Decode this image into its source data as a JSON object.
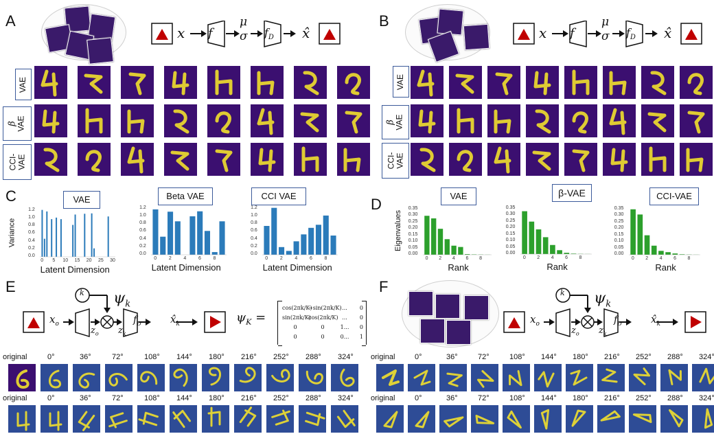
{
  "panels": {
    "A": "A",
    "B": "B",
    "C": "C",
    "D": "D",
    "E": "E",
    "F": "F"
  },
  "pipeline": {
    "x": "x",
    "f": "f",
    "mu": "μ",
    "sigma": "σ",
    "fD": "f",
    "fD_sub": "D",
    "xhat": "x̂",
    "xo": "x",
    "xo_sub": "o",
    "zo": "z",
    "zo_sub": "o",
    "zk": "z",
    "zk_sub": "k",
    "k": "k",
    "psi": "ψ",
    "psi_sub": "k",
    "xkhat": "x̂",
    "xkhat_sub": "k",
    "psiK": "ψ",
    "psiK_sub": "K",
    "eq": "="
  },
  "matrix": {
    "r1": [
      "cos(2πk/K)",
      "−sin(2πk/K)",
      "...",
      "0"
    ],
    "r2": [
      "sin(2πk/K)",
      "cos(2πk/K)",
      "...",
      "0"
    ],
    "r3": [
      "0",
      "0",
      "1...",
      "0"
    ],
    "r4": [
      "0",
      "0",
      "0...",
      "1"
    ]
  },
  "rowlabels": {
    "vae": "VAE",
    "beta_sym": "β",
    "beta_vae": "VAE",
    "cci": "CCI-",
    "cci_vae": "VAE"
  },
  "chartsC": [
    {
      "title": "VAE",
      "ylabel": "Variance",
      "xlabel": "Latent Dimension",
      "color": "#2b7bba",
      "type": "bar",
      "ticks_y": [
        "0.0",
        "0.2",
        "0.4",
        "0.6",
        "0.8",
        "1.0",
        "1.2"
      ],
      "ticks_x": [
        "0",
        "5",
        "10",
        "15",
        "20",
        "25",
        "30"
      ],
      "ylim": [
        0,
        1.25
      ],
      "xlim": [
        -1,
        31
      ],
      "x": [
        0,
        1,
        2,
        4,
        6,
        8,
        13,
        14,
        18,
        21,
        22,
        28
      ],
      "values": [
        1.22,
        0.47,
        1.18,
        0.98,
        1.02,
        0.98,
        0.83,
        1.1,
        1.12,
        1.13,
        0.22,
        1.05
      ]
    },
    {
      "title": "Beta VAE",
      "ylabel": "",
      "xlabel": "Latent Dimension",
      "color": "#2b7bba",
      "type": "bar",
      "ticks_y": [
        "0.0",
        "0.2",
        "0.4",
        "0.6",
        "0.8",
        "1.0",
        "1.2"
      ],
      "ticks_x": [
        "0",
        "2",
        "4",
        "6",
        "8"
      ],
      "ylim": [
        0,
        1.25
      ],
      "xlim": [
        -0.6,
        9.6
      ],
      "x": [
        0,
        1,
        2,
        3,
        5,
        6,
        7,
        8,
        9
      ],
      "values": [
        1.18,
        0.47,
        1.12,
        0.87,
        1.0,
        1.13,
        0.62,
        0.07,
        0.87
      ]
    },
    {
      "title": "CCI VAE",
      "ylabel": "",
      "xlabel": "Latent Dimension",
      "color": "#2b7bba",
      "type": "bar",
      "ticks_y": [
        "0.0",
        "0.2",
        "0.4",
        "0.6",
        "0.8",
        "1.0",
        "1.2"
      ],
      "ticks_x": [
        "0",
        "2",
        "4",
        "6",
        "8"
      ],
      "ylim": [
        0,
        1.25
      ],
      "xlim": [
        -0.6,
        9.6
      ],
      "x": [
        0,
        1,
        2,
        3,
        4,
        5,
        6,
        7,
        8,
        9
      ],
      "values": [
        0.75,
        1.22,
        0.2,
        0.1,
        0.35,
        0.53,
        0.7,
        0.78,
        1.02,
        0.5
      ]
    }
  ],
  "chartsD": [
    {
      "title": "VAE",
      "ylabel": "Eigenvalues",
      "xlabel": "Rank",
      "color": "#2ca02c",
      "type": "bar",
      "ticks_y": [
        "0.00",
        "0.05",
        "0.10",
        "0.15",
        "0.20",
        "0.25",
        "0.30",
        "0.35"
      ],
      "ticks_x": [
        "0",
        "2",
        "4",
        "6",
        "8"
      ],
      "ylim": [
        0,
        0.37
      ],
      "xlim": [
        -0.6,
        9.6
      ],
      "x": [
        0,
        1,
        2,
        3,
        4,
        5,
        6,
        7,
        8,
        9
      ],
      "values": [
        0.3,
        0.28,
        0.2,
        0.12,
        0.07,
        0.06,
        0.005,
        0.003,
        0.002,
        0.001
      ]
    },
    {
      "title": "β-VAE",
      "ylabel": "",
      "xlabel": "Rank",
      "color": "#2ca02c",
      "type": "bar",
      "ticks_y": [
        "0.00",
        "0.05",
        "0.10",
        "0.15",
        "0.20",
        "0.25",
        "0.30",
        "0.35"
      ],
      "ticks_x": [
        "0",
        "2",
        "4",
        "6",
        "8"
      ],
      "ylim": [
        0,
        0.37
      ],
      "xlim": [
        -0.6,
        9.6
      ],
      "x": [
        0,
        1,
        2,
        3,
        4,
        5,
        6,
        7,
        8,
        9
      ],
      "values": [
        0.33,
        0.25,
        0.19,
        0.13,
        0.07,
        0.03,
        0.01,
        0.004,
        0.002,
        0.001
      ]
    },
    {
      "title": "CCI-VAE",
      "ylabel": "",
      "xlabel": "Rank",
      "color": "#2ca02c",
      "type": "bar",
      "ticks_y": [
        "0.00",
        "0.05",
        "0.10",
        "0.15",
        "0.20",
        "0.25",
        "0.30",
        "0.35"
      ],
      "ticks_x": [
        "0",
        "2",
        "4",
        "6",
        "8"
      ],
      "ylim": [
        0,
        0.37
      ],
      "xlim": [
        -0.6,
        9.6
      ],
      "x": [
        0,
        1,
        2,
        3,
        4,
        5,
        6,
        7,
        8,
        9
      ],
      "values": [
        0.35,
        0.31,
        0.15,
        0.07,
        0.03,
        0.02,
        0.01,
        0.004,
        0.002,
        0.001
      ]
    }
  ],
  "rotation": {
    "original": "original",
    "angles": [
      "0°",
      "36°",
      "72°",
      "108°",
      "144°",
      "180°",
      "216°",
      "252°",
      "288°",
      "324°"
    ]
  },
  "colors": {
    "triangle": "#c00000",
    "label_border": "#3b5a9a",
    "cell_bg": "#3b0f70",
    "stroke": "#f2e02c"
  }
}
